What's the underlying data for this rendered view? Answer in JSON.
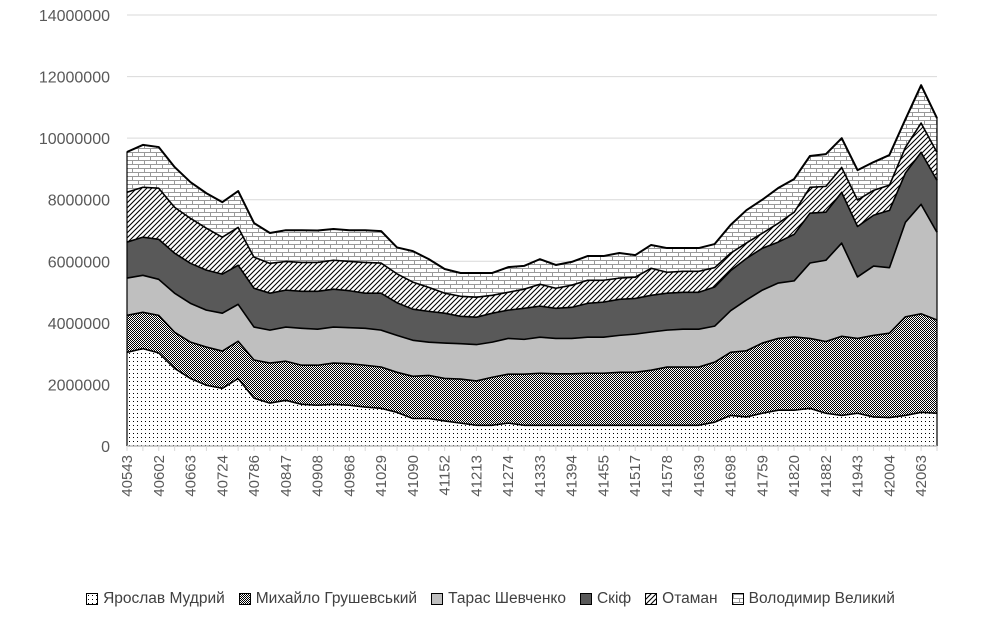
{
  "chart_data": {
    "type": "area",
    "stacked": true,
    "title": "",
    "xlabel": "",
    "ylabel": "",
    "ylim": [
      0,
      14000000
    ],
    "yticks": [
      0,
      2000000,
      4000000,
      6000000,
      8000000,
      10000000,
      12000000,
      14000000
    ],
    "grid": true,
    "legend_position": "bottom",
    "x": [
      40543,
      40574,
      40602,
      40633,
      40663,
      40694,
      40724,
      40755,
      40786,
      40816,
      40847,
      40877,
      40908,
      40939,
      40968,
      40999,
      41029,
      41060,
      41090,
      41121,
      41152,
      41182,
      41213,
      41243,
      41274,
      41305,
      41333,
      41364,
      41394,
      41425,
      41455,
      41486,
      41517,
      41547,
      41578,
      41608,
      41639,
      41670,
      41698,
      41729,
      41759,
      41790,
      41820,
      41851,
      41882,
      41912,
      41943,
      41973,
      42004,
      42035,
      42063,
      42094
    ],
    "series": [
      {
        "name": "Ярослав Мудрий",
        "fill": "dots",
        "values": [
          3050000,
          3170000,
          3030000,
          2530000,
          2200000,
          1980000,
          1880000,
          2200000,
          1560000,
          1400000,
          1490000,
          1360000,
          1330000,
          1360000,
          1330000,
          1270000,
          1230000,
          1100000,
          900000,
          900000,
          820000,
          750000,
          680000,
          680000,
          750000,
          680000,
          680000,
          680000,
          680000,
          680000,
          680000,
          680000,
          680000,
          680000,
          680000,
          680000,
          680000,
          780000,
          1000000,
          950000,
          1070000,
          1170000,
          1170000,
          1230000,
          1070000,
          1000000,
          1070000,
          950000,
          930000,
          1000000,
          1100000,
          1070000
        ]
      },
      {
        "name": "Михайло Грушевський",
        "fill": "checker",
        "values": [
          1200000,
          1180000,
          1220000,
          1170000,
          1180000,
          1240000,
          1210000,
          1210000,
          1240000,
          1300000,
          1270000,
          1270000,
          1300000,
          1340000,
          1350000,
          1360000,
          1340000,
          1300000,
          1370000,
          1400000,
          1380000,
          1430000,
          1440000,
          1560000,
          1590000,
          1660000,
          1690000,
          1670000,
          1670000,
          1690000,
          1690000,
          1720000,
          1720000,
          1790000,
          1890000,
          1890000,
          1890000,
          1950000,
          2050000,
          2150000,
          2280000,
          2330000,
          2380000,
          2270000,
          2330000,
          2570000,
          2430000,
          2650000,
          2740000,
          3200000,
          3200000,
          3030000
        ]
      },
      {
        "name": "Тарас Шевченко",
        "fill": "#bfbfbf",
        "values": [
          1210000,
          1200000,
          1170000,
          1270000,
          1260000,
          1200000,
          1230000,
          1200000,
          1070000,
          1070000,
          1110000,
          1200000,
          1170000,
          1170000,
          1170000,
          1200000,
          1200000,
          1200000,
          1170000,
          1080000,
          1150000,
          1150000,
          1180000,
          1140000,
          1160000,
          1130000,
          1170000,
          1150000,
          1150000,
          1170000,
          1170000,
          1200000,
          1240000,
          1240000,
          1200000,
          1230000,
          1230000,
          1170000,
          1350000,
          1650000,
          1720000,
          1800000,
          1820000,
          2450000,
          2640000,
          3030000,
          2000000,
          2250000,
          2130000,
          3070000,
          3560000,
          2850000
        ]
      },
      {
        "name": "Скіф",
        "fill": "#595959",
        "values": [
          1170000,
          1240000,
          1300000,
          1300000,
          1300000,
          1300000,
          1270000,
          1270000,
          1260000,
          1200000,
          1200000,
          1200000,
          1230000,
          1230000,
          1200000,
          1140000,
          1200000,
          1060000,
          1010000,
          1000000,
          970000,
          890000,
          890000,
          940000,
          920000,
          1010000,
          1010000,
          980000,
          1010000,
          1100000,
          1140000,
          1170000,
          1160000,
          1190000,
          1200000,
          1200000,
          1200000,
          1270000,
          1300000,
          1350000,
          1360000,
          1330000,
          1510000,
          1620000,
          1560000,
          1650000,
          1640000,
          1650000,
          1860000,
          1600000,
          1690000,
          1690000
        ]
      },
      {
        "name": "Отаман",
        "fill": "hatch",
        "values": [
          1620000,
          1620000,
          1660000,
          1490000,
          1460000,
          1360000,
          1200000,
          1230000,
          1010000,
          970000,
          930000,
          940000,
          940000,
          940000,
          950000,
          1000000,
          980000,
          940000,
          880000,
          780000,
          650000,
          650000,
          650000,
          580000,
          580000,
          620000,
          710000,
          650000,
          720000,
          750000,
          710000,
          690000,
          690000,
          880000,
          680000,
          680000,
          680000,
          630000,
          570000,
          500000,
          490000,
          610000,
          720000,
          840000,
          840000,
          810000,
          860000,
          810000,
          820000,
          830000,
          950000,
          910000
        ]
      },
      {
        "name": "Володимир Великий",
        "fill": "brick",
        "values": [
          1300000,
          1370000,
          1330000,
          1300000,
          1170000,
          1130000,
          1130000,
          1170000,
          1100000,
          980000,
          1010000,
          1040000,
          1030000,
          1010000,
          1010000,
          1040000,
          1030000,
          850000,
          1000000,
          910000,
          780000,
          750000,
          780000,
          720000,
          810000,
          750000,
          810000,
          750000,
          750000,
          780000,
          780000,
          810000,
          710000,
          750000,
          780000,
          750000,
          750000,
          760000,
          910000,
          1060000,
          1080000,
          1140000,
          1070000,
          1010000,
          1040000,
          940000,
          960000,
          910000,
          970000,
          900000,
          1220000,
          1100000
        ]
      }
    ]
  }
}
